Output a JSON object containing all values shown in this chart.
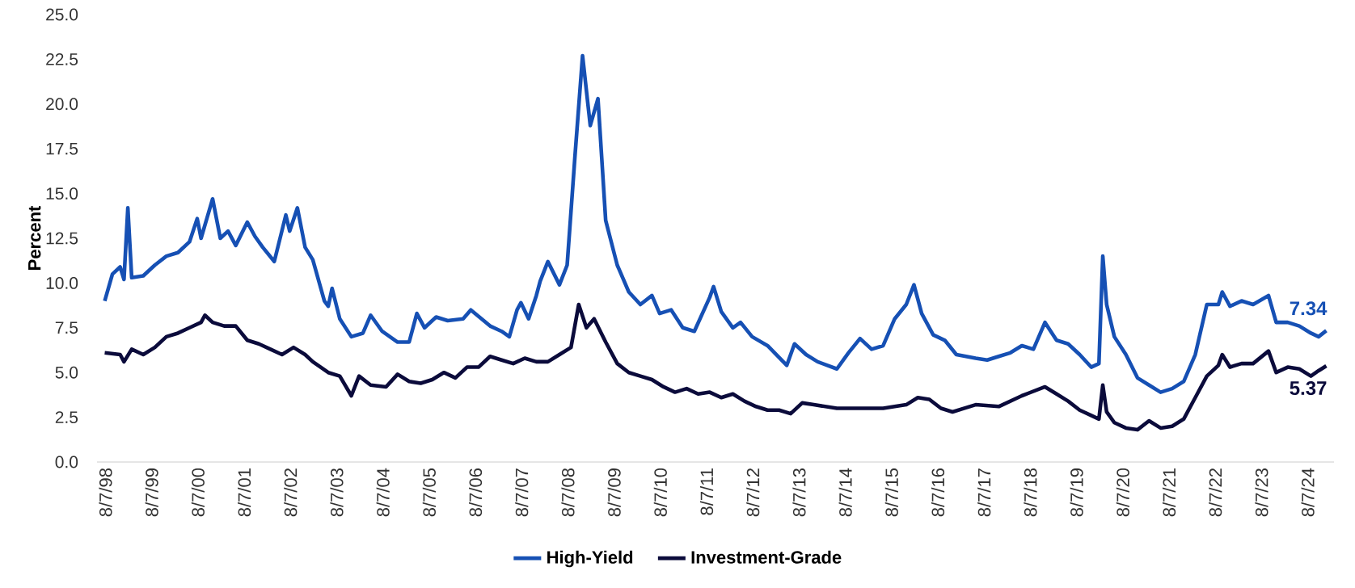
{
  "chart_data": {
    "type": "line",
    "ylabel": "Percent",
    "xlim": [
      "1998-06",
      "2025-03"
    ],
    "ylim": [
      0,
      25
    ],
    "yticks": [
      {
        "value": 0,
        "label": "0.0"
      },
      2.5,
      {
        "value": 5,
        "label": "5.0"
      },
      7.5,
      {
        "value": 10,
        "label": "10.0"
      },
      12.5,
      {
        "value": 15,
        "label": "15.0"
      },
      17.5,
      {
        "value": 20,
        "label": "20.0"
      },
      22.5,
      {
        "value": 25,
        "label": "25.0"
      }
    ],
    "xticks": [
      {
        "value": "1998-08-07",
        "label": "8/7/98"
      },
      {
        "value": "1999-08-07",
        "label": "8/7/99"
      },
      {
        "value": "2000-08-07",
        "label": "8/7/00"
      },
      {
        "value": "2001-08-07",
        "label": "8/7/01"
      },
      {
        "value": "2002-08-07",
        "label": "8/7/02"
      },
      {
        "value": "2003-08-07",
        "label": "8/7/03"
      },
      {
        "value": "2004-08-07",
        "label": "8/7/04"
      },
      {
        "value": "2005-08-07",
        "label": "8/7/05"
      },
      {
        "value": "2006-08-07",
        "label": "8/7/06"
      },
      {
        "value": "2007-08-07",
        "label": "8/7/07"
      },
      {
        "value": "2008-08-07",
        "label": "8/7/08"
      },
      {
        "value": "2009-08-07",
        "label": "8/7/09"
      },
      {
        "value": "2010-08-07",
        "label": "8/7/10"
      },
      {
        "value": "2011-08-07",
        "label": "8/7/11"
      },
      {
        "value": "2012-08-07",
        "label": "8/7/12"
      },
      {
        "value": "2013-08-07",
        "label": "8/7/13"
      },
      {
        "value": "2014-08-07",
        "label": "8/7/14"
      },
      {
        "value": "2015-08-07",
        "label": "8/7/15"
      },
      {
        "value": "2016-08-07",
        "label": "8/7/16"
      },
      {
        "value": "2017-08-07",
        "label": "8/7/17"
      },
      {
        "value": "2018-08-07",
        "label": "8/7/18"
      },
      {
        "value": "2019-08-07",
        "label": "8/7/19"
      },
      {
        "value": "2020-08-07",
        "label": "8/7/20"
      },
      {
        "value": "2021-08-07",
        "label": "8/7/21"
      },
      {
        "value": "2022-08-07",
        "label": "8/7/22"
      },
      {
        "value": "2023-08-07",
        "label": "8/7/23"
      },
      {
        "value": "2024-08-07",
        "label": "8/7/24"
      }
    ],
    "legend": "bottom",
    "series": [
      {
        "name": "High-Yield",
        "color": "#1650b4",
        "x": [
          "1998-08",
          "1998-10",
          "1998-12",
          "1999-01",
          "1999-02",
          "1999-03",
          "1999-06",
          "1999-09",
          "1999-12",
          "2000-03",
          "2000-06",
          "2000-08",
          "2000-09",
          "2000-12",
          "2001-02",
          "2001-04",
          "2001-06",
          "2001-09",
          "2001-11",
          "2002-01",
          "2002-04",
          "2002-07",
          "2002-08",
          "2002-10",
          "2002-12",
          "2003-02",
          "2003-05",
          "2003-06",
          "2003-07",
          "2003-09",
          "2003-12",
          "2004-03",
          "2004-05",
          "2004-08",
          "2004-12",
          "2005-03",
          "2005-05",
          "2005-07",
          "2005-10",
          "2006-01",
          "2006-05",
          "2006-07",
          "2006-12",
          "2007-03",
          "2007-05",
          "2007-07",
          "2007-08",
          "2007-10",
          "2007-12",
          "2008-01",
          "2008-03",
          "2008-06",
          "2008-08",
          "2008-10",
          "2008-12",
          "2009-02",
          "2009-04",
          "2009-06",
          "2009-09",
          "2009-12",
          "2010-03",
          "2010-06",
          "2010-08",
          "2010-11",
          "2011-02",
          "2011-05",
          "2011-09",
          "2011-10",
          "2011-12",
          "2012-03",
          "2012-05",
          "2012-08",
          "2012-12",
          "2013-05",
          "2013-07",
          "2013-10",
          "2014-01",
          "2014-06",
          "2014-09",
          "2014-12",
          "2015-03",
          "2015-06",
          "2015-09",
          "2015-12",
          "2016-02",
          "2016-04",
          "2016-07",
          "2016-10",
          "2017-01",
          "2017-06",
          "2017-09",
          "2017-12",
          "2018-03",
          "2018-06",
          "2018-09",
          "2018-12",
          "2019-03",
          "2019-06",
          "2019-09",
          "2019-12",
          "2020-02",
          "2020-03",
          "2020-04",
          "2020-06",
          "2020-09",
          "2020-12",
          "2021-03",
          "2021-06",
          "2021-09",
          "2021-12",
          "2022-03",
          "2022-06",
          "2022-09",
          "2022-10",
          "2022-12",
          "2023-03",
          "2023-06",
          "2023-10",
          "2023-12",
          "2024-03",
          "2024-06",
          "2024-09",
          "2024-11",
          "2025-01"
        ],
        "values": [
          9.0,
          10.5,
          10.9,
          10.2,
          14.2,
          10.3,
          10.4,
          11.0,
          11.5,
          11.7,
          12.3,
          13.6,
          12.5,
          14.7,
          12.5,
          12.9,
          12.1,
          13.4,
          12.6,
          12.0,
          11.2,
          13.8,
          12.9,
          14.2,
          12.0,
          11.3,
          9.0,
          8.7,
          9.7,
          8.0,
          7.0,
          7.2,
          8.2,
          7.3,
          6.7,
          6.7,
          8.3,
          7.5,
          8.1,
          7.9,
          8.0,
          8.5,
          7.6,
          7.3,
          7.0,
          8.5,
          8.9,
          8.0,
          9.3,
          10.1,
          11.2,
          9.9,
          11.0,
          17.0,
          22.7,
          18.8,
          20.3,
          13.5,
          11.0,
          9.5,
          8.8,
          9.3,
          8.3,
          8.5,
          7.5,
          7.3,
          9.2,
          9.8,
          8.4,
          7.5,
          7.8,
          7.0,
          6.5,
          5.4,
          6.6,
          6.0,
          5.6,
          5.2,
          6.1,
          6.9,
          6.3,
          6.5,
          8.0,
          8.8,
          9.9,
          8.3,
          7.1,
          6.8,
          6.0,
          5.8,
          5.7,
          5.9,
          6.1,
          6.5,
          6.3,
          7.8,
          6.8,
          6.6,
          6.0,
          5.3,
          5.5,
          11.5,
          8.8,
          7.0,
          6.0,
          4.7,
          4.3,
          3.9,
          4.1,
          4.5,
          6.0,
          8.8,
          8.8,
          9.5,
          8.7,
          9.0,
          8.8,
          9.3,
          7.8,
          7.8,
          7.6,
          7.2,
          7.0,
          7.34
        ]
      },
      {
        "name": "Investment-Grade",
        "color": "#0b0b3b",
        "x": [
          "1998-08",
          "1998-12",
          "1999-01",
          "1999-03",
          "1999-06",
          "1999-09",
          "1999-12",
          "2000-03",
          "2000-06",
          "2000-09",
          "2000-10",
          "2000-12",
          "2001-03",
          "2001-06",
          "2001-09",
          "2001-12",
          "2002-03",
          "2002-06",
          "2002-09",
          "2002-12",
          "2003-02",
          "2003-06",
          "2003-09",
          "2003-12",
          "2004-02",
          "2004-05",
          "2004-09",
          "2004-12",
          "2005-03",
          "2005-06",
          "2005-09",
          "2005-12",
          "2006-03",
          "2006-06",
          "2006-09",
          "2006-12",
          "2007-03",
          "2007-06",
          "2007-09",
          "2007-12",
          "2008-03",
          "2008-06",
          "2008-09",
          "2008-11",
          "2009-01",
          "2009-03",
          "2009-06",
          "2009-09",
          "2009-12",
          "2010-03",
          "2010-06",
          "2010-09",
          "2010-12",
          "2011-03",
          "2011-06",
          "2011-09",
          "2011-12",
          "2012-03",
          "2012-06",
          "2012-09",
          "2012-12",
          "2013-03",
          "2013-06",
          "2013-09",
          "2013-12",
          "2014-06",
          "2014-12",
          "2015-06",
          "2015-12",
          "2016-03",
          "2016-06",
          "2016-09",
          "2016-12",
          "2017-06",
          "2017-12",
          "2018-06",
          "2018-12",
          "2019-03",
          "2019-06",
          "2019-09",
          "2019-12",
          "2020-02",
          "2020-03",
          "2020-04",
          "2020-06",
          "2020-09",
          "2020-12",
          "2021-03",
          "2021-06",
          "2021-09",
          "2021-12",
          "2022-03",
          "2022-06",
          "2022-09",
          "2022-10",
          "2022-12",
          "2023-03",
          "2023-06",
          "2023-10",
          "2023-12",
          "2024-03",
          "2024-06",
          "2024-09",
          "2024-11",
          "2025-01"
        ],
        "values": [
          6.1,
          6.0,
          5.6,
          6.3,
          6.0,
          6.4,
          7.0,
          7.2,
          7.5,
          7.8,
          8.2,
          7.8,
          7.6,
          7.6,
          6.8,
          6.6,
          6.3,
          6.0,
          6.4,
          6.0,
          5.6,
          5.0,
          4.8,
          3.7,
          4.8,
          4.3,
          4.2,
          4.9,
          4.5,
          4.4,
          4.6,
          5.0,
          4.7,
          5.3,
          5.3,
          5.9,
          5.7,
          5.5,
          5.8,
          5.6,
          5.6,
          6.0,
          6.4,
          8.8,
          7.5,
          8.0,
          6.7,
          5.5,
          5.0,
          4.8,
          4.6,
          4.2,
          3.9,
          4.1,
          3.8,
          3.9,
          3.6,
          3.8,
          3.4,
          3.1,
          2.9,
          2.9,
          2.7,
          3.3,
          3.2,
          3.0,
          3.0,
          3.0,
          3.2,
          3.6,
          3.5,
          3.0,
          2.8,
          3.2,
          3.1,
          3.7,
          4.2,
          3.8,
          3.4,
          2.9,
          2.6,
          2.4,
          4.3,
          2.8,
          2.2,
          1.9,
          1.8,
          2.3,
          1.9,
          2.0,
          2.4,
          3.6,
          4.8,
          5.4,
          6.0,
          5.3,
          5.5,
          5.5,
          6.2,
          5.0,
          5.3,
          5.2,
          4.8,
          5.1,
          5.37
        ]
      }
    ],
    "annotations": [
      {
        "text": "7.34",
        "x": "2025-01",
        "y": 7.34
      },
      {
        "text": "5.37",
        "x": "2025-01",
        "y": 5.37
      }
    ]
  }
}
